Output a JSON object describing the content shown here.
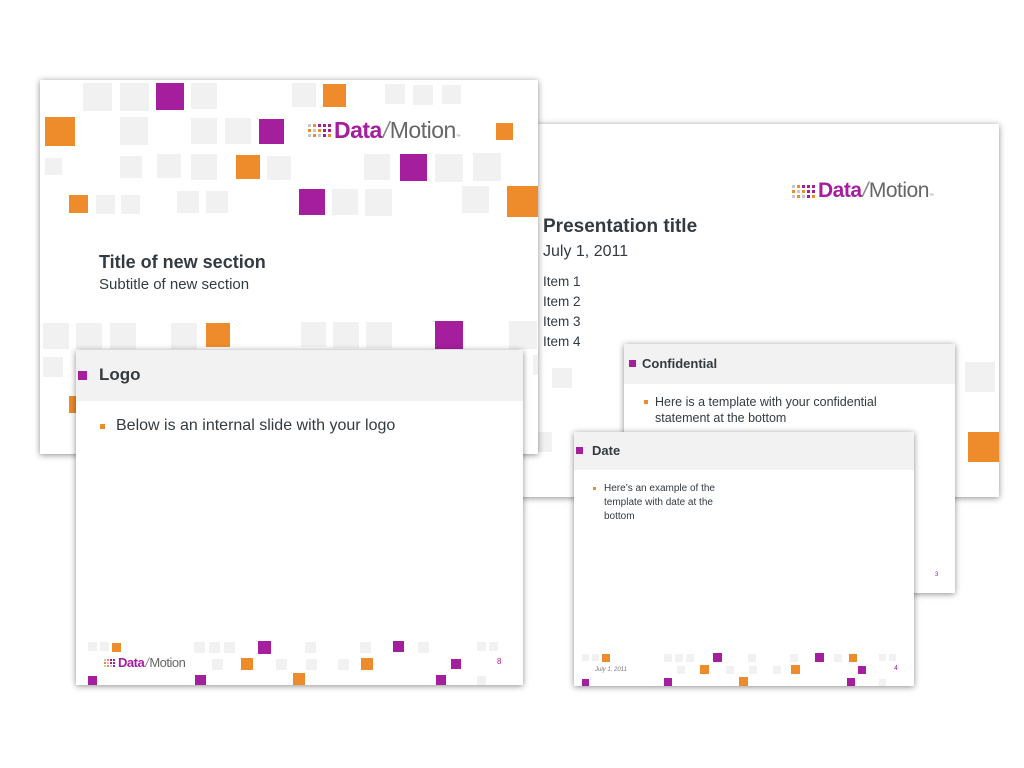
{
  "brand": {
    "logo_data": "Data",
    "logo_slash": "/",
    "logo_motion": "Motion",
    "logo_tm": "™",
    "purple": "#a51e9d",
    "orange": "#ee8b2a",
    "grey": "#f1f1f1"
  },
  "slides": {
    "section": {
      "title": "Title of new section",
      "subtitle": "Subtitle of new section"
    },
    "presentation": {
      "title": "Presentation title",
      "date": "July 1, 2011",
      "items": [
        "Item 1",
        "Item 2",
        "Item 3",
        "Item 4"
      ]
    },
    "logo": {
      "heading": "Logo",
      "bullet": "Below is an internal slide with your logo",
      "page_number": "8"
    },
    "confidential": {
      "heading": "Confidential",
      "bullet": "Here is a template with your confidential statement at the bottom",
      "page_number": "3"
    },
    "date": {
      "heading": "Date",
      "bullet": "Here’s an example of the template with date at the bottom",
      "footer_date": "July 1, 2011",
      "page_number": "4"
    }
  }
}
